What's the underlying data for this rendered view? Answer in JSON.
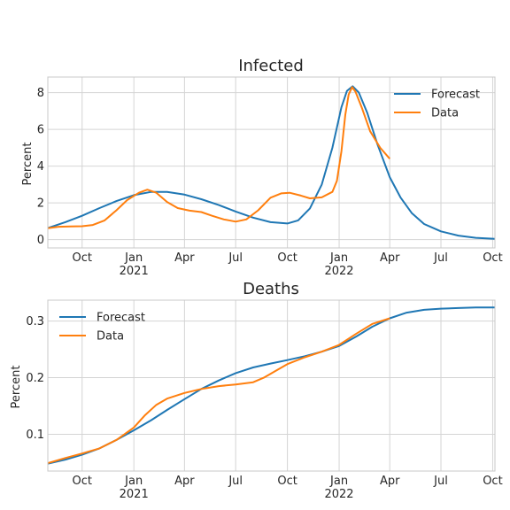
{
  "colors": {
    "forecast": "#1f77b4",
    "data": "#ff7f0e"
  },
  "chart_data": [
    {
      "type": "line",
      "title": "Infected",
      "xlabel": "",
      "ylabel": "Percent",
      "xlim": [
        "2020-08-01",
        "2022-10-05"
      ],
      "ylim": [
        -0.45,
        8.85
      ],
      "x_ticks": [
        {
          "date": "2020-10-01",
          "label": "Oct",
          "sublabel": ""
        },
        {
          "date": "2021-01-01",
          "label": "Jan",
          "sublabel": "2021"
        },
        {
          "date": "2021-04-01",
          "label": "Apr",
          "sublabel": ""
        },
        {
          "date": "2021-07-01",
          "label": "Jul",
          "sublabel": ""
        },
        {
          "date": "2021-10-01",
          "label": "Oct",
          "sublabel": ""
        },
        {
          "date": "2022-01-01",
          "label": "Jan",
          "sublabel": "2022"
        },
        {
          "date": "2022-04-01",
          "label": "Apr",
          "sublabel": ""
        },
        {
          "date": "2022-07-01",
          "label": "Jul",
          "sublabel": ""
        },
        {
          "date": "2022-10-01",
          "label": "Oct",
          "sublabel": ""
        }
      ],
      "y_ticks": [
        {
          "value": 0,
          "label": "0"
        },
        {
          "value": 2,
          "label": "2"
        },
        {
          "value": 4,
          "label": "4"
        },
        {
          "value": 6,
          "label": "6"
        },
        {
          "value": 8,
          "label": "8"
        }
      ],
      "grid": true,
      "legend": "top-right",
      "series": [
        {
          "name": "Forecast",
          "color_key": "forecast",
          "points": [
            [
              "2020-08-01",
              0.63
            ],
            [
              "2020-09-01",
              0.95
            ],
            [
              "2020-10-01",
              1.3
            ],
            [
              "2020-11-01",
              1.72
            ],
            [
              "2020-12-01",
              2.1
            ],
            [
              "2021-01-01",
              2.42
            ],
            [
              "2021-02-01",
              2.6
            ],
            [
              "2021-03-01",
              2.6
            ],
            [
              "2021-04-01",
              2.45
            ],
            [
              "2021-05-01",
              2.2
            ],
            [
              "2021-06-01",
              1.88
            ],
            [
              "2021-07-01",
              1.53
            ],
            [
              "2021-08-01",
              1.2
            ],
            [
              "2021-09-01",
              0.95
            ],
            [
              "2021-10-01",
              0.88
            ],
            [
              "2021-10-20",
              1.05
            ],
            [
              "2021-11-10",
              1.7
            ],
            [
              "2021-12-01",
              3.0
            ],
            [
              "2021-12-20",
              5.0
            ],
            [
              "2022-01-05",
              7.2
            ],
            [
              "2022-01-15",
              8.1
            ],
            [
              "2022-01-25",
              8.35
            ],
            [
              "2022-02-05",
              8.0
            ],
            [
              "2022-02-20",
              6.9
            ],
            [
              "2022-03-10",
              5.2
            ],
            [
              "2022-04-01",
              3.4
            ],
            [
              "2022-04-20",
              2.3
            ],
            [
              "2022-05-10",
              1.45
            ],
            [
              "2022-06-01",
              0.85
            ],
            [
              "2022-07-01",
              0.45
            ],
            [
              "2022-08-01",
              0.22
            ],
            [
              "2022-09-01",
              0.1
            ],
            [
              "2022-10-05",
              0.04
            ]
          ]
        },
        {
          "name": "Data",
          "color_key": "data",
          "points": [
            [
              "2020-08-01",
              0.62
            ],
            [
              "2020-08-20",
              0.7
            ],
            [
              "2020-09-10",
              0.72
            ],
            [
              "2020-10-01",
              0.73
            ],
            [
              "2020-10-20",
              0.8
            ],
            [
              "2020-11-10",
              1.05
            ],
            [
              "2020-12-01",
              1.6
            ],
            [
              "2020-12-20",
              2.15
            ],
            [
              "2021-01-10",
              2.55
            ],
            [
              "2021-01-25",
              2.72
            ],
            [
              "2021-02-10",
              2.55
            ],
            [
              "2021-03-01",
              2.05
            ],
            [
              "2021-03-20",
              1.72
            ],
            [
              "2021-04-10",
              1.58
            ],
            [
              "2021-05-01",
              1.5
            ],
            [
              "2021-05-20",
              1.3
            ],
            [
              "2021-06-10",
              1.1
            ],
            [
              "2021-07-01",
              0.98
            ],
            [
              "2021-07-20",
              1.1
            ],
            [
              "2021-08-10",
              1.6
            ],
            [
              "2021-09-01",
              2.28
            ],
            [
              "2021-09-20",
              2.52
            ],
            [
              "2021-10-05",
              2.55
            ],
            [
              "2021-10-25",
              2.4
            ],
            [
              "2021-11-10",
              2.25
            ],
            [
              "2021-12-01",
              2.3
            ],
            [
              "2021-12-20",
              2.6
            ],
            [
              "2021-12-28",
              3.2
            ],
            [
              "2022-01-05",
              4.8
            ],
            [
              "2022-01-12",
              6.8
            ],
            [
              "2022-01-18",
              7.9
            ],
            [
              "2022-01-24",
              8.3
            ],
            [
              "2022-01-30",
              8.05
            ],
            [
              "2022-02-10",
              7.2
            ],
            [
              "2022-02-25",
              5.9
            ],
            [
              "2022-03-15",
              5.0
            ],
            [
              "2022-04-01",
              4.4
            ]
          ]
        }
      ]
    },
    {
      "type": "line",
      "title": "Deaths",
      "xlabel": "",
      "ylabel": "Percent",
      "xlim": [
        "2020-08-01",
        "2022-10-05"
      ],
      "ylim": [
        0.035,
        0.337
      ],
      "x_ticks": [
        {
          "date": "2020-10-01",
          "label": "Oct",
          "sublabel": ""
        },
        {
          "date": "2021-01-01",
          "label": "Jan",
          "sublabel": "2021"
        },
        {
          "date": "2021-04-01",
          "label": "Apr",
          "sublabel": ""
        },
        {
          "date": "2021-07-01",
          "label": "Jul",
          "sublabel": ""
        },
        {
          "date": "2021-10-01",
          "label": "Oct",
          "sublabel": ""
        },
        {
          "date": "2022-01-01",
          "label": "Jan",
          "sublabel": "2022"
        },
        {
          "date": "2022-04-01",
          "label": "Apr",
          "sublabel": ""
        },
        {
          "date": "2022-07-01",
          "label": "Jul",
          "sublabel": ""
        },
        {
          "date": "2022-10-01",
          "label": "Oct",
          "sublabel": ""
        }
      ],
      "y_ticks": [
        {
          "value": 0.1,
          "label": "0.1"
        },
        {
          "value": 0.2,
          "label": "0.2"
        },
        {
          "value": 0.3,
          "label": "0.3"
        }
      ],
      "grid": true,
      "legend": "top-left",
      "series": [
        {
          "name": "Forecast",
          "color_key": "forecast",
          "points": [
            [
              "2020-08-01",
              0.048
            ],
            [
              "2020-09-01",
              0.055
            ],
            [
              "2020-10-01",
              0.064
            ],
            [
              "2020-11-01",
              0.075
            ],
            [
              "2020-12-01",
              0.09
            ],
            [
              "2021-01-01",
              0.107
            ],
            [
              "2021-02-01",
              0.125
            ],
            [
              "2021-03-01",
              0.143
            ],
            [
              "2021-04-01",
              0.162
            ],
            [
              "2021-05-01",
              0.18
            ],
            [
              "2021-06-01",
              0.195
            ],
            [
              "2021-07-01",
              0.208
            ],
            [
              "2021-08-01",
              0.218
            ],
            [
              "2021-09-01",
              0.225
            ],
            [
              "2021-10-01",
              0.231
            ],
            [
              "2021-11-01",
              0.238
            ],
            [
              "2021-12-01",
              0.246
            ],
            [
              "2022-01-01",
              0.256
            ],
            [
              "2022-02-01",
              0.273
            ],
            [
              "2022-03-01",
              0.29
            ],
            [
              "2022-04-01",
              0.305
            ],
            [
              "2022-05-01",
              0.315
            ],
            [
              "2022-06-01",
              0.32
            ],
            [
              "2022-07-01",
              0.322
            ],
            [
              "2022-08-01",
              0.323
            ],
            [
              "2022-09-01",
              0.324
            ],
            [
              "2022-10-05",
              0.324
            ]
          ]
        },
        {
          "name": "Data",
          "color_key": "data",
          "points": [
            [
              "2020-08-01",
              0.049
            ],
            [
              "2020-09-01",
              0.058
            ],
            [
              "2020-10-01",
              0.066
            ],
            [
              "2020-11-01",
              0.075
            ],
            [
              "2020-12-01",
              0.09
            ],
            [
              "2021-01-01",
              0.112
            ],
            [
              "2021-01-20",
              0.133
            ],
            [
              "2021-02-10",
              0.152
            ],
            [
              "2021-03-01",
              0.163
            ],
            [
              "2021-04-01",
              0.173
            ],
            [
              "2021-05-01",
              0.18
            ],
            [
              "2021-06-01",
              0.185
            ],
            [
              "2021-07-01",
              0.188
            ],
            [
              "2021-08-01",
              0.192
            ],
            [
              "2021-08-20",
              0.2
            ],
            [
              "2021-09-10",
              0.212
            ],
            [
              "2021-10-01",
              0.224
            ],
            [
              "2021-11-01",
              0.236
            ],
            [
              "2021-12-01",
              0.246
            ],
            [
              "2022-01-01",
              0.258
            ],
            [
              "2022-02-01",
              0.278
            ],
            [
              "2022-03-01",
              0.295
            ],
            [
              "2022-04-01",
              0.305
            ]
          ]
        }
      ]
    }
  ]
}
